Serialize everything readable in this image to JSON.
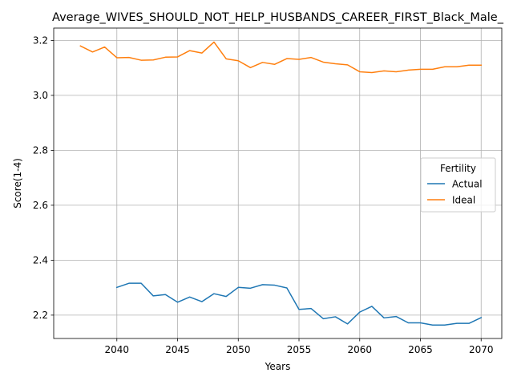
{
  "chart_data": {
    "type": "line",
    "title": "Average_WIVES_SHOULD_NOT_HELP_HUSBANDS_CAREER_FIRST_Black_Male_",
    "xlabel": "Years",
    "ylabel": "Score(1-4)",
    "xlim": [
      2034.8,
      2071.7
    ],
    "ylim": [
      2.115,
      3.245
    ],
    "xticks": [
      2040,
      2045,
      2050,
      2055,
      2060,
      2065,
      2070
    ],
    "yticks": [
      2.2,
      2.4,
      2.6,
      2.8,
      3.0,
      3.2
    ],
    "ytick_labels": [
      "2.2",
      "2.4",
      "2.6",
      "2.8",
      "3.0",
      "3.2"
    ],
    "grid": true,
    "legend": {
      "title": "Fertility",
      "placement": "center-right"
    },
    "series": [
      {
        "name": "Actual",
        "color": "#1f77b4",
        "x": [
          2040,
          2041,
          2042,
          2043,
          2044,
          2045,
          2046,
          2047,
          2048,
          2049,
          2050,
          2051,
          2052,
          2053,
          2054,
          2055,
          2056,
          2057,
          2058,
          2059,
          2060,
          2061,
          2062,
          2063,
          2064,
          2065,
          2066,
          2067,
          2068,
          2069,
          2070
        ],
        "values": [
          2.301,
          2.316,
          2.316,
          2.27,
          2.275,
          2.247,
          2.266,
          2.249,
          2.278,
          2.268,
          2.301,
          2.298,
          2.311,
          2.309,
          2.299,
          2.221,
          2.224,
          2.187,
          2.194,
          2.168,
          2.211,
          2.232,
          2.19,
          2.195,
          2.172,
          2.172,
          2.164,
          2.164,
          2.17,
          2.17,
          2.191
        ]
      },
      {
        "name": "Ideal",
        "color": "#ff7f0e",
        "x": [
          2037,
          2038,
          2039,
          2040,
          2041,
          2042,
          2043,
          2044,
          2045,
          2046,
          2047,
          2048,
          2049,
          2050,
          2051,
          2052,
          2053,
          2054,
          2055,
          2056,
          2057,
          2058,
          2059,
          2060,
          2061,
          2062,
          2063,
          2064,
          2065,
          2066,
          2067,
          2068,
          2069,
          2070
        ],
        "values": [
          3.18,
          3.158,
          3.176,
          3.137,
          3.138,
          3.128,
          3.129,
          3.139,
          3.14,
          3.163,
          3.154,
          3.194,
          3.133,
          3.126,
          3.101,
          3.12,
          3.113,
          3.134,
          3.131,
          3.138,
          3.121,
          3.115,
          3.111,
          3.086,
          3.083,
          3.089,
          3.086,
          3.092,
          3.095,
          3.095,
          3.104,
          3.104,
          3.11,
          3.11
        ]
      }
    ]
  }
}
